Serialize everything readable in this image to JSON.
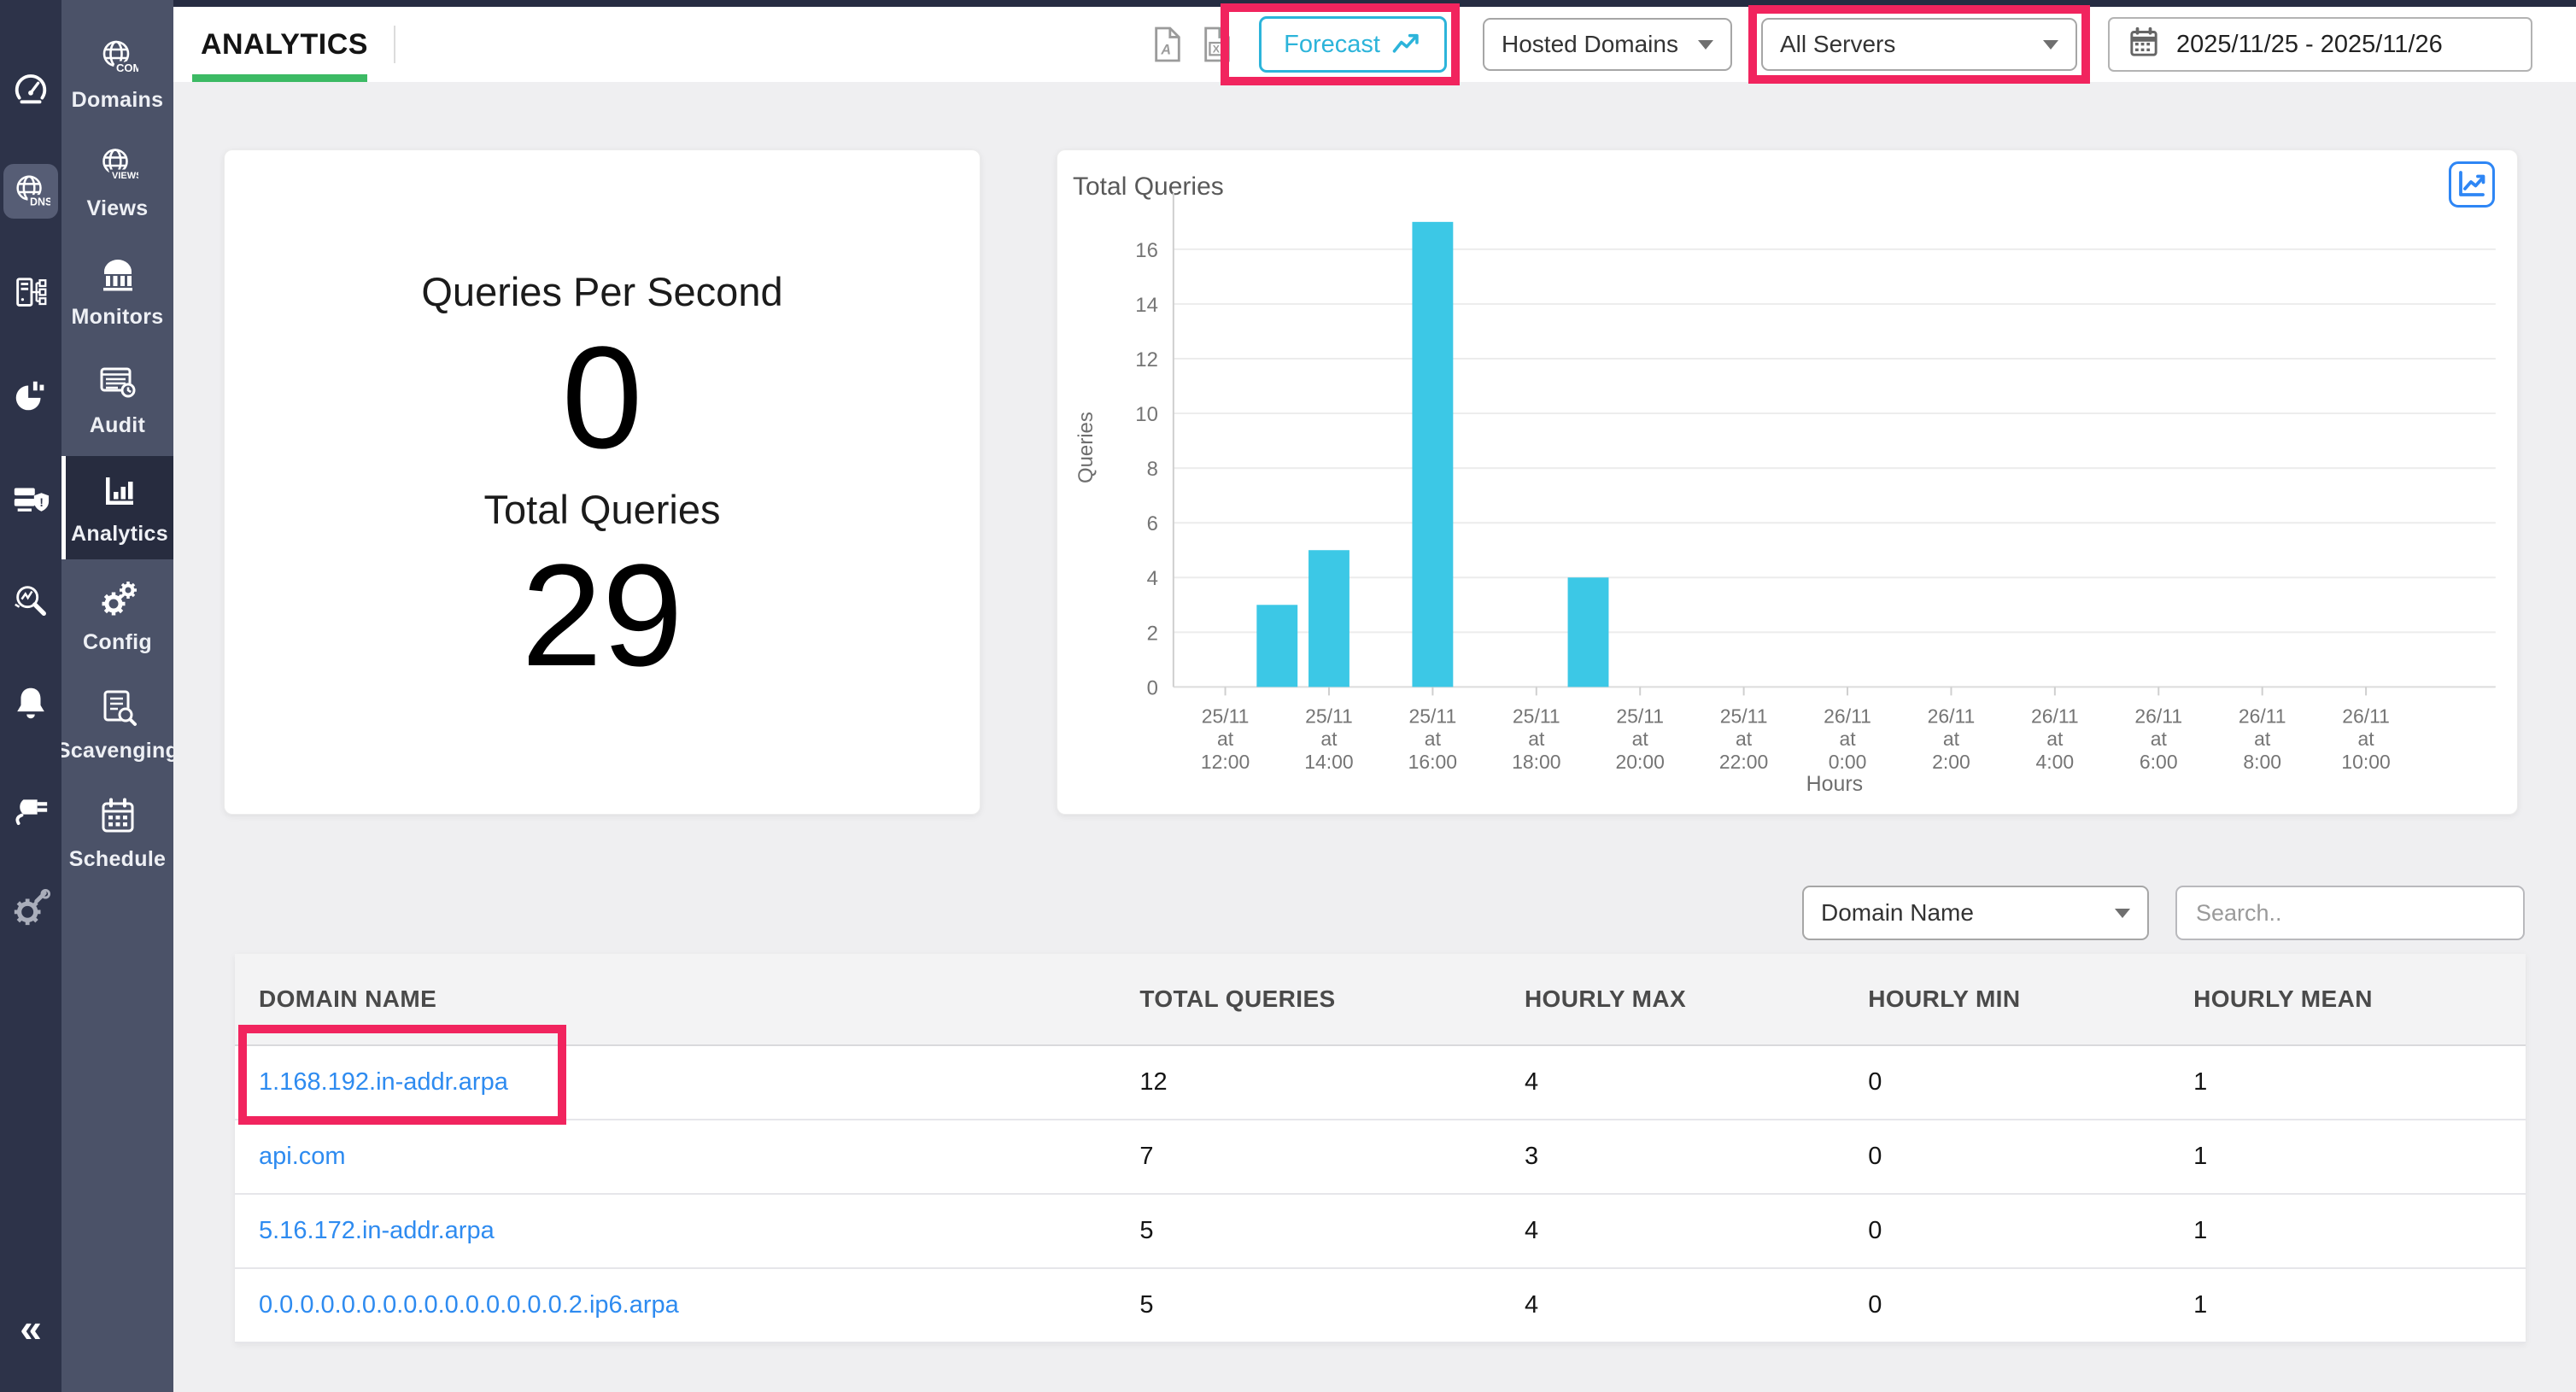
{
  "colors": {
    "accent_green": "#3cba64",
    "cyan": "#2cb4da",
    "bar_cyan": "#3cc8e6",
    "link_blue": "#2e8bf0",
    "annotation_red": "#f1245e",
    "rail1_bg": "#2d3349",
    "rail2_bg": "#4b5268",
    "active_item_bg": "#272c3f"
  },
  "left_rail": {
    "items": [
      {
        "icon": "gauge-icon",
        "active": false
      },
      {
        "icon": "dns-globe-icon",
        "active": true
      },
      {
        "icon": "server-tree-icon",
        "active": false
      },
      {
        "icon": "pie-report-icon",
        "active": false
      },
      {
        "icon": "server-shield-icon",
        "active": false
      },
      {
        "icon": "search-monitor-icon",
        "active": false
      },
      {
        "icon": "bell-icon",
        "active": false
      },
      {
        "icon": "plug-icon",
        "active": false
      },
      {
        "icon": "gear-wrench-icon",
        "active": false
      }
    ],
    "collapse_label": "«"
  },
  "sidebar": {
    "items": [
      {
        "label": "Domains",
        "icon": "domains-globe-icon",
        "active": false
      },
      {
        "label": "Views",
        "icon": "views-globe-icon",
        "active": false
      },
      {
        "label": "Monitors",
        "icon": "monitors-icon",
        "active": false
      },
      {
        "label": "Audit",
        "icon": "audit-icon",
        "active": false
      },
      {
        "label": "Analytics",
        "icon": "analytics-bars-icon",
        "active": true
      },
      {
        "label": "Config",
        "icon": "config-gears-icon",
        "active": false
      },
      {
        "label": "Scavenging",
        "icon": "scavenging-icon",
        "active": false
      },
      {
        "label": "Schedule",
        "icon": "schedule-calendar-icon",
        "active": false
      }
    ]
  },
  "topbar": {
    "tab": "ANALYTICS",
    "export_pdf_icon": "pdf-export-icon",
    "export_excel_icon": "excel-export-icon",
    "forecast_label": "Forecast",
    "hosted_domains_value": "Hosted Domains",
    "all_servers_value": "All Servers",
    "date_range": "2025/11/25 - 2025/11/26"
  },
  "cards": {
    "qps_label": "Queries Per Second",
    "qps_value": "0",
    "total_label": "Total Queries",
    "total_value": "29"
  },
  "chart_data": {
    "type": "bar",
    "title": "Total Queries",
    "xlabel": "Hours",
    "ylabel": "Queries",
    "grid": true,
    "legend": false,
    "y_ticks": [
      0,
      2,
      4,
      6,
      8,
      10,
      12,
      14,
      16
    ],
    "y_max": 17.5,
    "x_domain_hours": [
      -1,
      24.5
    ],
    "x_ticks": [
      {
        "label": "25/11 at 12:00",
        "hour": 0
      },
      {
        "label": "25/11 at 14:00",
        "hour": 2
      },
      {
        "label": "25/11 at 16:00",
        "hour": 4
      },
      {
        "label": "25/11 at 18:00",
        "hour": 6
      },
      {
        "label": "25/11 at 20:00",
        "hour": 8
      },
      {
        "label": "25/11 at 22:00",
        "hour": 10
      },
      {
        "label": "26/11 at 0:00",
        "hour": 12
      },
      {
        "label": "26/11 at 2:00",
        "hour": 14
      },
      {
        "label": "26/11 at 4:00",
        "hour": 16
      },
      {
        "label": "26/11 at 6:00",
        "hour": 18
      },
      {
        "label": "26/11 at 8:00",
        "hour": 20
      },
      {
        "label": "26/11 at 10:00",
        "hour": 22
      }
    ],
    "bars": [
      {
        "time": "25/11 13:00",
        "hour": 1,
        "value": 3
      },
      {
        "time": "25/11 14:00",
        "hour": 2,
        "value": 5
      },
      {
        "time": "25/11 16:00",
        "hour": 4,
        "value": 17
      },
      {
        "time": "25/11 19:00",
        "hour": 7,
        "value": 4
      }
    ],
    "total": 29
  },
  "filter": {
    "column_select_value": "Domain Name",
    "search_placeholder": "Search.."
  },
  "table": {
    "columns": [
      "DOMAIN NAME",
      "TOTAL QUERIES",
      "HOURLY MAX",
      "HOURLY MIN",
      "HOURLY MEAN"
    ],
    "rows": [
      {
        "domain": "1.168.192.in-addr.arpa",
        "total_queries": "12",
        "hourly_max": "4",
        "hourly_min": "0",
        "hourly_mean": "1",
        "annotated": true
      },
      {
        "domain": "api.com",
        "total_queries": "7",
        "hourly_max": "3",
        "hourly_min": "0",
        "hourly_mean": "1",
        "annotated": false
      },
      {
        "domain": "5.16.172.in-addr.arpa",
        "total_queries": "5",
        "hourly_max": "4",
        "hourly_min": "0",
        "hourly_mean": "1",
        "annotated": false
      },
      {
        "domain": "0.0.0.0.0.0.0.0.0.0.0.0.0.0.0.2.ip6.arpa",
        "total_queries": "5",
        "hourly_max": "4",
        "hourly_min": "0",
        "hourly_mean": "1",
        "annotated": false
      }
    ]
  },
  "annotations": {
    "color": "#f1245e",
    "targets": [
      "forecast-button",
      "all-servers-select",
      "first-row-domain-cell"
    ]
  }
}
